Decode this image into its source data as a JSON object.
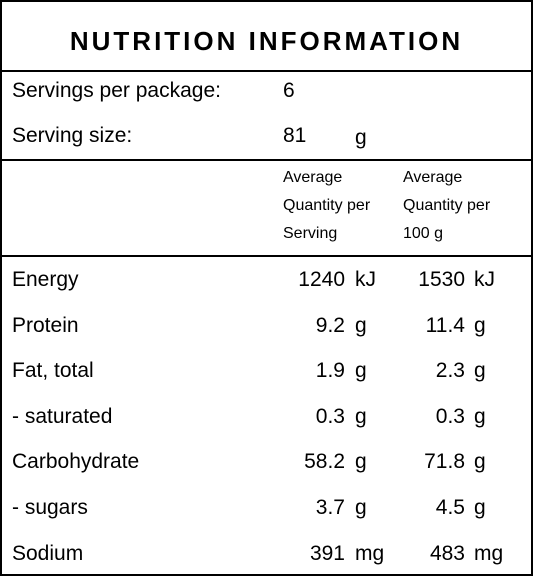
{
  "title": "NUTRITION INFORMATION",
  "servings": {
    "label": "Servings per package:",
    "value": 6
  },
  "serving_size": {
    "label": "Serving size:",
    "value": 81,
    "unit": "g"
  },
  "header": {
    "per_serving": [
      "Average",
      "Quantity per",
      "Serving"
    ],
    "per_100g": [
      "Average",
      "Quantity per",
      "100 g"
    ]
  },
  "rows": [
    {
      "name": "Energy",
      "serving": 1240,
      "serving_unit": "kJ",
      "per_100g": 1530,
      "per_100g_unit": "kJ"
    },
    {
      "name": "Protein",
      "serving": 9.2,
      "serving_unit": "g",
      "per_100g": 11.4,
      "per_100g_unit": "g"
    },
    {
      "name": "Fat, total",
      "serving": 1.9,
      "serving_unit": "g",
      "per_100g": 2.3,
      "per_100g_unit": "g"
    },
    {
      "name": "- saturated",
      "serving": 0.3,
      "serving_unit": "g",
      "per_100g": 0.3,
      "per_100g_unit": "g"
    },
    {
      "name": "Carbohydrate",
      "serving": 58.2,
      "serving_unit": "g",
      "per_100g": 71.8,
      "per_100g_unit": "g"
    },
    {
      "name": "- sugars",
      "serving": 3.7,
      "serving_unit": "g",
      "per_100g": 4.5,
      "per_100g_unit": "g"
    },
    {
      "name": "Sodium",
      "serving": 391,
      "serving_unit": "mg",
      "per_100g": 483,
      "per_100g_unit": "mg"
    }
  ]
}
